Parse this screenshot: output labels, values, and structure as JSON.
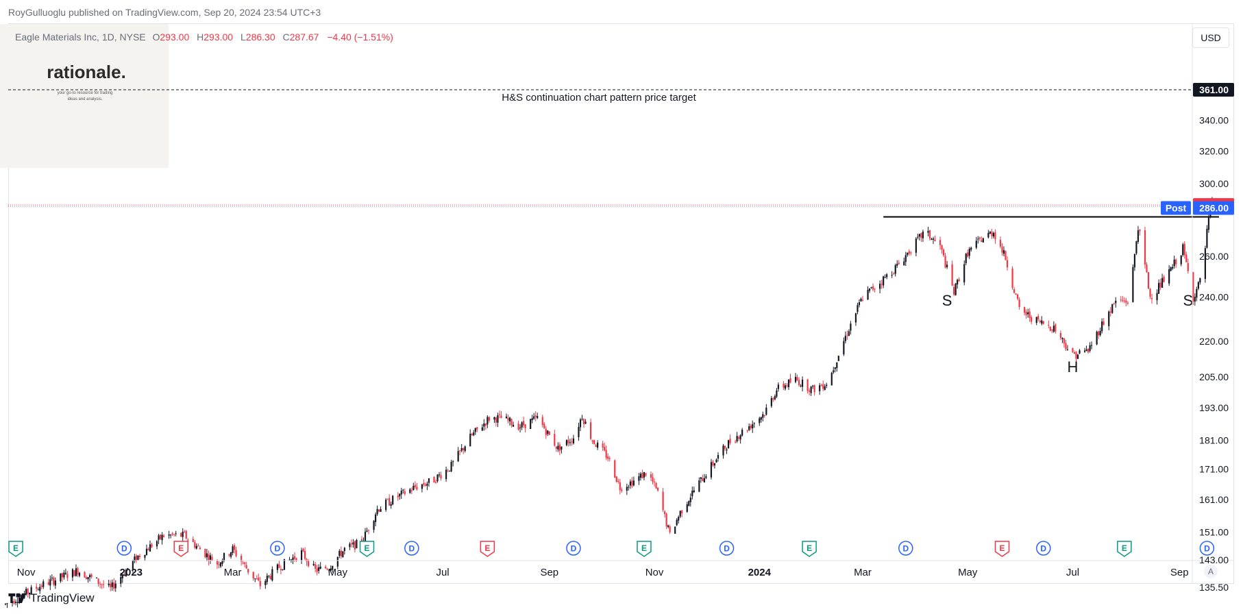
{
  "header": {
    "publisher": "RoyGulluoglu published on TradingView.com, Sep 20, 2024 23:54 UTC+3"
  },
  "legend": {
    "symbol": "Eagle Materials Inc, 1D, NYSE",
    "o_label": "O",
    "o_value": "293.00",
    "h_label": "H",
    "h_value": "293.00",
    "l_label": "L",
    "l_value": "286.30",
    "c_label": "C",
    "c_value": "287.67",
    "change": "−4.40 (−1.51%)"
  },
  "logo": {
    "name": "rationale.",
    "tagline_1": "your go-to resource for trading",
    "tagline_2": "ideas and analysis."
  },
  "toolbar": {
    "currency": "USD",
    "auto": "A"
  },
  "footer": {
    "brand": "TradingView"
  },
  "colors": {
    "up": "#131722",
    "down": "#f23645",
    "price_tag": "#f23645",
    "post_tag": "#2962ff",
    "dividend": "#2962ff",
    "earnings_up": "#089981",
    "earnings_down": "#f23645"
  },
  "chart_data": {
    "type": "candlestick",
    "y_axis": {
      "scale": "log",
      "ylim": [
        134,
        392
      ],
      "ticks": [
        "135.50",
        "143.00",
        "151.00",
        "161.00",
        "171.00",
        "181.00",
        "193.00",
        "205.00",
        "220.00",
        "240.00",
        "260.00",
        "300.00",
        "320.00",
        "340.00"
      ]
    },
    "x_axis": {
      "labels": [
        "Nov",
        "2023",
        "Mar",
        "May",
        "Jul",
        "Sep",
        "Nov",
        "2024",
        "Mar",
        "May",
        "Jul",
        "Sep"
      ],
      "bold": [
        "2023",
        "2024"
      ]
    },
    "price_tags": {
      "target": "361.00",
      "last": "287.67",
      "post_label": "Post",
      "post": "286.00"
    },
    "target_line": {
      "value": 361,
      "label": "H&S continuation chart pattern price target"
    },
    "neckline": {
      "value": 281
    },
    "pattern_labels": [
      {
        "text": "S",
        "date": "2024-04-19",
        "price": 236
      },
      {
        "text": "H",
        "date": "2024-07-01",
        "price": 207
      },
      {
        "text": "S",
        "date": "2024-09-06",
        "price": 236
      }
    ],
    "series_path": [
      [
        "2022-10-20",
        131
      ],
      [
        "2022-11-10",
        136
      ],
      [
        "2022-12-01",
        140
      ],
      [
        "2022-12-20",
        135
      ],
      [
        "2023-01-05",
        144
      ],
      [
        "2023-01-20",
        150
      ],
      [
        "2023-02-01",
        150
      ],
      [
        "2023-02-10",
        146
      ],
      [
        "2023-02-20",
        142
      ],
      [
        "2023-03-01",
        146
      ],
      [
        "2023-03-10",
        140
      ],
      [
        "2023-03-17",
        136
      ],
      [
        "2023-03-28",
        141
      ],
      [
        "2023-04-10",
        145
      ],
      [
        "2023-04-18",
        140
      ],
      [
        "2023-04-26",
        141
      ],
      [
        "2023-05-05",
        146
      ],
      [
        "2023-05-15",
        148
      ],
      [
        "2023-05-24",
        158
      ],
      [
        "2023-06-05",
        162
      ],
      [
        "2023-06-15",
        165
      ],
      [
        "2023-06-25",
        167
      ],
      [
        "2023-07-06",
        172
      ],
      [
        "2023-07-17",
        182
      ],
      [
        "2023-07-28",
        189
      ],
      [
        "2023-08-04",
        189
      ],
      [
        "2023-08-15",
        186
      ],
      [
        "2023-08-25",
        189
      ],
      [
        "2023-09-06",
        178
      ],
      [
        "2023-09-15",
        182
      ],
      [
        "2023-09-20",
        190
      ],
      [
        "2023-09-26",
        181
      ],
      [
        "2023-10-05",
        175
      ],
      [
        "2023-10-12",
        165
      ],
      [
        "2023-10-20",
        167
      ],
      [
        "2023-10-28",
        170
      ],
      [
        "2023-11-03",
        163
      ],
      [
        "2023-11-10",
        150
      ],
      [
        "2023-11-16",
        157
      ],
      [
        "2023-11-24",
        164
      ],
      [
        "2023-12-04",
        172
      ],
      [
        "2023-12-14",
        180
      ],
      [
        "2023-12-26",
        186
      ],
      [
        "2024-01-04",
        191
      ],
      [
        "2024-01-11",
        200
      ],
      [
        "2024-01-22",
        204
      ],
      [
        "2024-02-01",
        200
      ],
      [
        "2024-02-10",
        203
      ],
      [
        "2024-02-20",
        222
      ],
      [
        "2024-03-01",
        240
      ],
      [
        "2024-03-11",
        247
      ],
      [
        "2024-03-21",
        255
      ],
      [
        "2024-03-31",
        266
      ],
      [
        "2024-04-06",
        273
      ],
      [
        "2024-04-15",
        265
      ],
      [
        "2024-04-23",
        242
      ],
      [
        "2024-05-01",
        262
      ],
      [
        "2024-05-09",
        269
      ],
      [
        "2024-05-16",
        273
      ],
      [
        "2024-05-23",
        259
      ],
      [
        "2024-05-31",
        234
      ],
      [
        "2024-06-10",
        229
      ],
      [
        "2024-06-20",
        226
      ],
      [
        "2024-07-01",
        214
      ],
      [
        "2024-07-10",
        216
      ],
      [
        "2024-07-17",
        226
      ],
      [
        "2024-07-26",
        238
      ],
      [
        "2024-08-03",
        238
      ],
      [
        "2024-08-08",
        276
      ],
      [
        "2024-08-15",
        240
      ],
      [
        "2024-08-25",
        250
      ],
      [
        "2024-09-03",
        264
      ],
      [
        "2024-09-09",
        240
      ],
      [
        "2024-09-14",
        249
      ],
      [
        "2024-09-18",
        280
      ],
      [
        "2024-09-20",
        289
      ]
    ],
    "events": [
      {
        "type": "E",
        "date": "2022-10-26"
      },
      {
        "type": "D",
        "date": "2022-12-28"
      },
      {
        "type": "E",
        "date": "2023-01-30"
      },
      {
        "type": "D",
        "date": "2023-03-27"
      },
      {
        "type": "E",
        "date": "2023-05-18"
      },
      {
        "type": "D",
        "date": "2023-06-13"
      },
      {
        "type": "E",
        "date": "2023-07-27"
      },
      {
        "type": "D",
        "date": "2023-09-15"
      },
      {
        "type": "E",
        "date": "2023-10-26"
      },
      {
        "type": "D",
        "date": "2023-12-13"
      },
      {
        "type": "E",
        "date": "2024-01-30"
      },
      {
        "type": "D",
        "date": "2024-03-26"
      },
      {
        "type": "E",
        "date": "2024-05-21"
      },
      {
        "type": "D",
        "date": "2024-06-14"
      },
      {
        "type": "E",
        "date": "2024-07-31"
      },
      {
        "type": "D",
        "date": "2024-09-17"
      }
    ]
  }
}
